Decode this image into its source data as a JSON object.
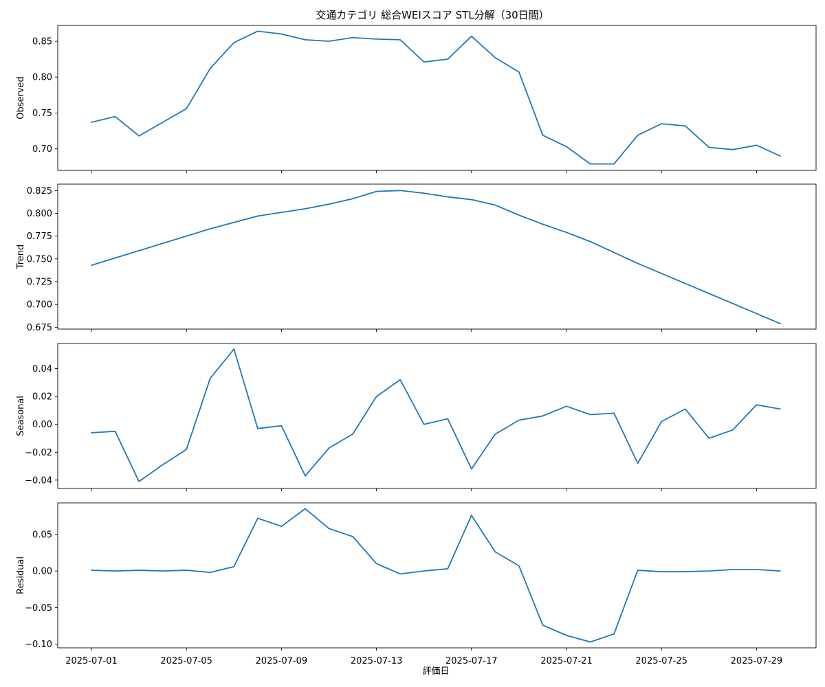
{
  "chart_data": {
    "type": "line",
    "title": "交通カテゴリ 総合WEIスコア STL分解（30日間）",
    "xlabel": "評価日",
    "x": [
      "2025-07-01",
      "2025-07-02",
      "2025-07-03",
      "2025-07-04",
      "2025-07-05",
      "2025-07-06",
      "2025-07-07",
      "2025-07-08",
      "2025-07-09",
      "2025-07-10",
      "2025-07-11",
      "2025-07-12",
      "2025-07-13",
      "2025-07-14",
      "2025-07-15",
      "2025-07-16",
      "2025-07-17",
      "2025-07-18",
      "2025-07-19",
      "2025-07-20",
      "2025-07-21",
      "2025-07-22",
      "2025-07-23",
      "2025-07-24",
      "2025-07-25",
      "2025-07-26",
      "2025-07-27",
      "2025-07-28",
      "2025-07-29",
      "2025-07-30"
    ],
    "x_ticks": [
      "2025-07-01",
      "2025-07-05",
      "2025-07-09",
      "2025-07-13",
      "2025-07-17",
      "2025-07-21",
      "2025-07-25",
      "2025-07-29"
    ],
    "color": "#1f77b4",
    "grid": false,
    "panels": [
      {
        "ylabel": "Observed",
        "ylim": [
          0.67,
          0.872
        ],
        "yticks": [
          0.7,
          0.75,
          0.8,
          0.85
        ],
        "ytick_labels": [
          "0.70",
          "0.75",
          "0.80",
          "0.85"
        ],
        "values": [
          0.737,
          0.745,
          0.718,
          0.737,
          0.756,
          0.812,
          0.848,
          0.864,
          0.86,
          0.852,
          0.85,
          0.855,
          0.853,
          0.852,
          0.821,
          0.825,
          0.857,
          0.827,
          0.807,
          0.719,
          0.703,
          0.679,
          0.679,
          0.719,
          0.735,
          0.732,
          0.702,
          0.699,
          0.705,
          0.69
        ]
      },
      {
        "ylabel": "Trend",
        "ylim": [
          0.673,
          0.832
        ],
        "yticks": [
          0.675,
          0.7,
          0.725,
          0.75,
          0.775,
          0.8,
          0.825
        ],
        "ytick_labels": [
          "0.675",
          "0.700",
          "0.725",
          "0.750",
          "0.775",
          "0.800",
          "0.825"
        ],
        "values": [
          0.743,
          0.751,
          0.759,
          0.767,
          0.775,
          0.783,
          0.79,
          0.797,
          0.801,
          0.805,
          0.81,
          0.816,
          0.824,
          0.825,
          0.822,
          0.818,
          0.815,
          0.809,
          0.798,
          0.788,
          0.779,
          0.769,
          0.757,
          0.745,
          0.734,
          0.723,
          0.712,
          0.701,
          0.69,
          0.679
        ]
      },
      {
        "ylabel": "Seasonal",
        "ylim": [
          -0.046,
          0.058
        ],
        "yticks": [
          -0.04,
          -0.02,
          0.0,
          0.02,
          0.04
        ],
        "ytick_labels": [
          "−0.04",
          "−0.02",
          "0.00",
          "0.02",
          "0.04"
        ],
        "values": [
          -0.006,
          -0.005,
          -0.041,
          -0.029,
          -0.018,
          0.033,
          0.054,
          -0.003,
          -0.001,
          -0.037,
          -0.017,
          -0.007,
          0.02,
          0.032,
          0.0,
          0.004,
          -0.032,
          -0.007,
          0.003,
          0.006,
          0.013,
          0.007,
          0.008,
          -0.028,
          0.002,
          0.011,
          -0.01,
          -0.004,
          0.014,
          0.011
        ]
      },
      {
        "ylabel": "Residual",
        "ylim": [
          -0.105,
          0.093
        ],
        "yticks": [
          -0.1,
          -0.05,
          0.0,
          0.05
        ],
        "ytick_labels": [
          "−0.10",
          "−0.05",
          "0.00",
          "0.05"
        ],
        "values": [
          0.001,
          0.0,
          0.001,
          0.0,
          0.001,
          -0.002,
          0.006,
          0.072,
          0.061,
          0.085,
          0.058,
          0.047,
          0.01,
          -0.004,
          0.0,
          0.003,
          0.076,
          0.026,
          0.007,
          -0.074,
          -0.088,
          -0.097,
          -0.086,
          0.001,
          -0.001,
          -0.001,
          0.0,
          0.002,
          0.002,
          0.0
        ]
      }
    ]
  }
}
